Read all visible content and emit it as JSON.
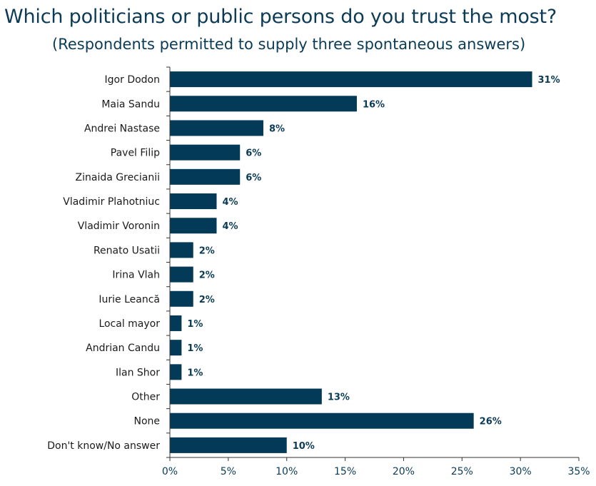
{
  "chart_data": {
    "type": "bar",
    "orientation": "horizontal",
    "title": "Which politicians or public persons do you trust the most?",
    "subtitle": "(Respondents permitted to supply three spontaneous answers)",
    "categories": [
      "Igor Dodon",
      "Maia Sandu",
      "Andrei Nastase",
      "Pavel Filip",
      "Zinaida Grecianii",
      "Vladimir Plahotniuc",
      "Vladimir Voronin",
      "Renato Usatii",
      "Irina Vlah",
      "Iurie Leancă",
      "Local mayor",
      "Andrian Candu",
      "Ilan Shor",
      "Other",
      "None",
      "Don't know/No answer"
    ],
    "values": [
      31,
      16,
      8,
      6,
      6,
      4,
      4,
      2,
      2,
      2,
      1,
      1,
      1,
      13,
      26,
      10
    ],
    "value_labels": [
      "31%",
      "16%",
      "8%",
      "6%",
      "6%",
      "4%",
      "4%",
      "2%",
      "2%",
      "2%",
      "1%",
      "1%",
      "1%",
      "13%",
      "26%",
      "10%"
    ],
    "xlim": [
      0,
      35
    ],
    "xticks": [
      0,
      5,
      10,
      15,
      20,
      25,
      30,
      35
    ],
    "xtick_labels": [
      "0%",
      "5%",
      "10%",
      "15%",
      "20%",
      "25%",
      "30%",
      "35%"
    ],
    "xlabel": "",
    "ylabel": "",
    "grid": false,
    "colors": {
      "bar": "#033a57",
      "axis": "#333333",
      "text": "#0b3b56"
    }
  }
}
